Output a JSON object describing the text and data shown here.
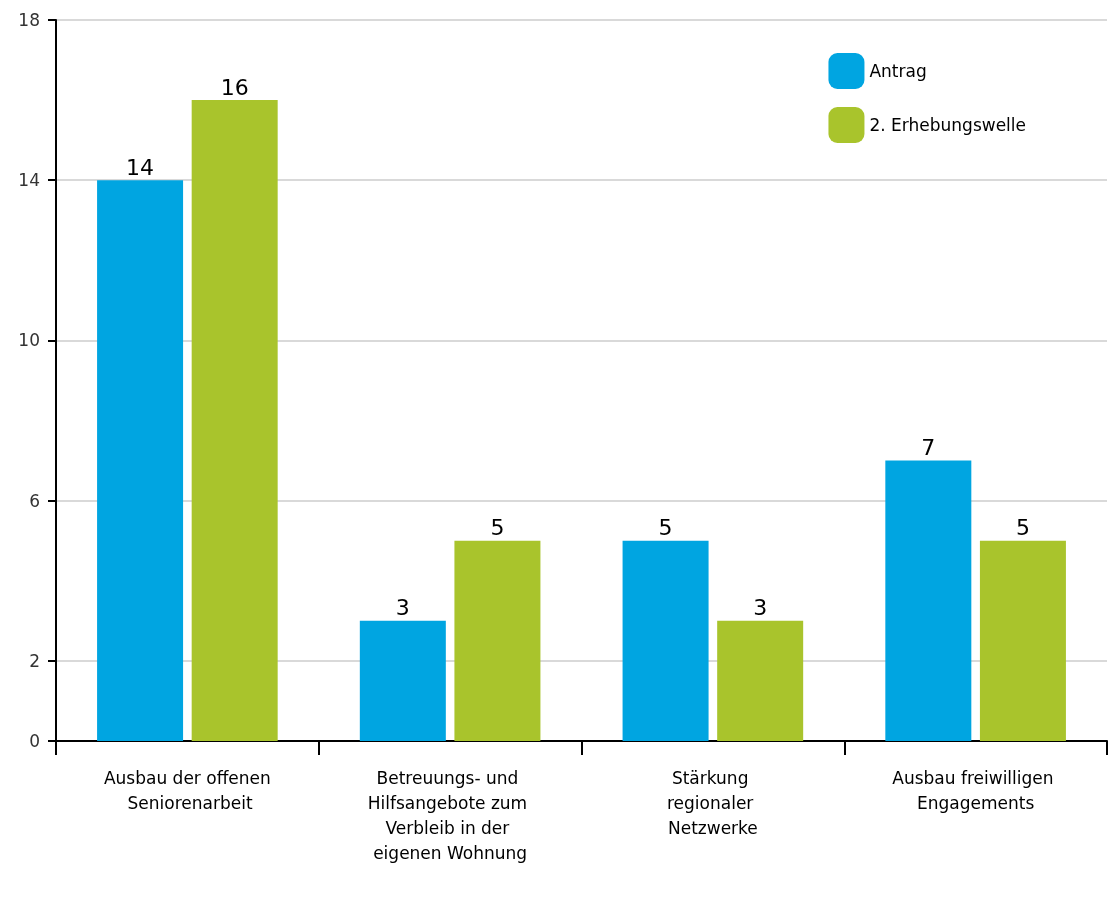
{
  "chart_data": {
    "type": "bar",
    "categories": [
      "Ausbau der offenen Seniorenarbeit",
      "Betreuungs- und Hilfsangebote zum Verbleib in der eigenen Wohnung",
      "Stärkung regionaler Netzwerke",
      "Ausbau freiwilligen Engagements"
    ],
    "series": [
      {
        "name": "Antrag",
        "color": "#00a5e1",
        "values": [
          14,
          3,
          5,
          7
        ]
      },
      {
        "name": "2. Erhebungswelle",
        "color": "#a9c42c",
        "values": [
          16,
          5,
          3,
          5
        ]
      }
    ],
    "ylim": [
      0,
      18
    ],
    "yticks": [
      0,
      2,
      6,
      10,
      14,
      18
    ],
    "grid": "y",
    "legend": "top right",
    "data_labels": true
  }
}
